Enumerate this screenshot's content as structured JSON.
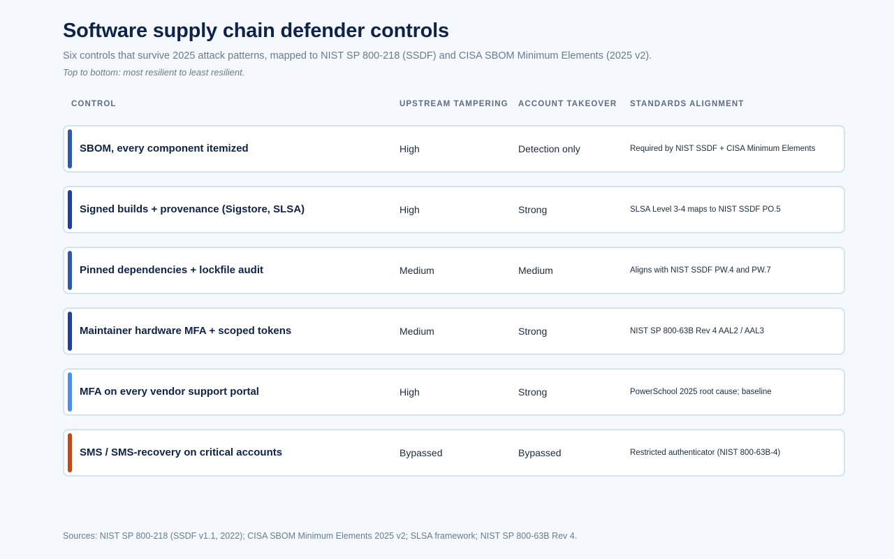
{
  "header": {
    "title": "Software supply chain defender controls",
    "subtitle": "Six controls that survive 2025 attack patterns, mapped to NIST SP 800-218 (SSDF) and CISA SBOM Minimum Elements (2025 v2).",
    "note": "Top to bottom: most resilient to least resilient."
  },
  "table": {
    "columns": {
      "control": "CONTROL",
      "upstream": "UPSTREAM TAMPERING",
      "account": "ACCOUNT TAKEOVER",
      "standards": "STANDARDS ALIGNMENT"
    },
    "rows": [
      {
        "control": "SBOM, every component itemized",
        "upstream": "High",
        "account": "Detection only",
        "standards": "Required by NIST SSDF + CISA Minimum Elements",
        "accent_color": "#2f5aa8"
      },
      {
        "control": "Signed builds + provenance (Sigstore, SLSA)",
        "upstream": "High",
        "account": "Strong",
        "standards": "SLSA Level 3-4 maps to NIST SSDF PO.5",
        "accent_color": "#1f3fa0"
      },
      {
        "control": "Pinned dependencies + lockfile audit",
        "upstream": "Medium",
        "account": "Medium",
        "standards": "Aligns with NIST SSDF PW.4 and PW.7",
        "accent_color": "#2f5aa8"
      },
      {
        "control": "Maintainer hardware MFA + scoped tokens",
        "upstream": "Medium",
        "account": "Strong",
        "standards": "NIST SP 800-63B Rev 4 AAL2 / AAL3",
        "accent_color": "#1f3fa0"
      },
      {
        "control": "MFA on every vendor support portal",
        "upstream": "High",
        "account": "Strong",
        "standards": "PowerSchool 2025 root cause; baseline",
        "accent_color": "#4a8ef0"
      },
      {
        "control": "SMS / SMS-recovery on critical accounts",
        "upstream": "Bypassed",
        "account": "Bypassed",
        "standards": "Restricted authenticator (NIST 800-63B-4)",
        "accent_color": "#c4471a"
      }
    ]
  },
  "footer": {
    "sources": "Sources: NIST SP 800-218 (SSDF v1.1, 2022); CISA SBOM Minimum Elements 2025 v2; SLSA framework; NIST SP 800-63B Rev 4."
  }
}
